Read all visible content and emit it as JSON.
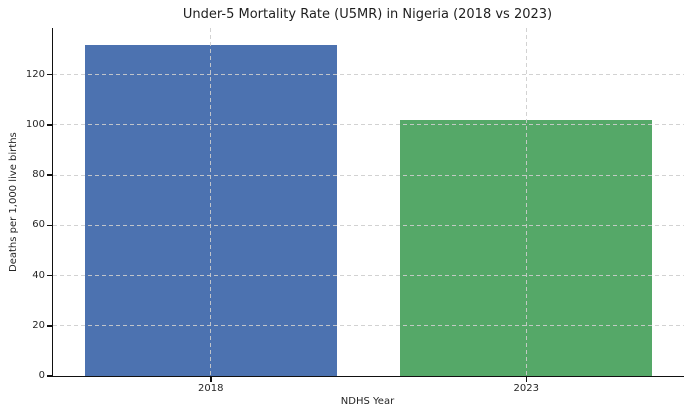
{
  "chart_data": {
    "type": "bar",
    "title": "Under-5 Mortality Rate (U5MR) in Nigeria (2018 vs 2023)",
    "xlabel": "NDHS Year",
    "ylabel": "Deaths per 1,000 live births",
    "categories": [
      "2018",
      "2023"
    ],
    "values": [
      132,
      102
    ],
    "bar_colors": [
      "#4C72B0",
      "#55A868"
    ],
    "ylim": [
      0,
      138.6
    ],
    "yticks": [
      0,
      20,
      40,
      60,
      80,
      100,
      120
    ],
    "grid": "dashed light-gray, horizontal at each ytick and vertical at each category center, drawn above bars",
    "legend_position": "none",
    "background_color": "#ffffff",
    "spines": [
      "left",
      "bottom"
    ]
  }
}
